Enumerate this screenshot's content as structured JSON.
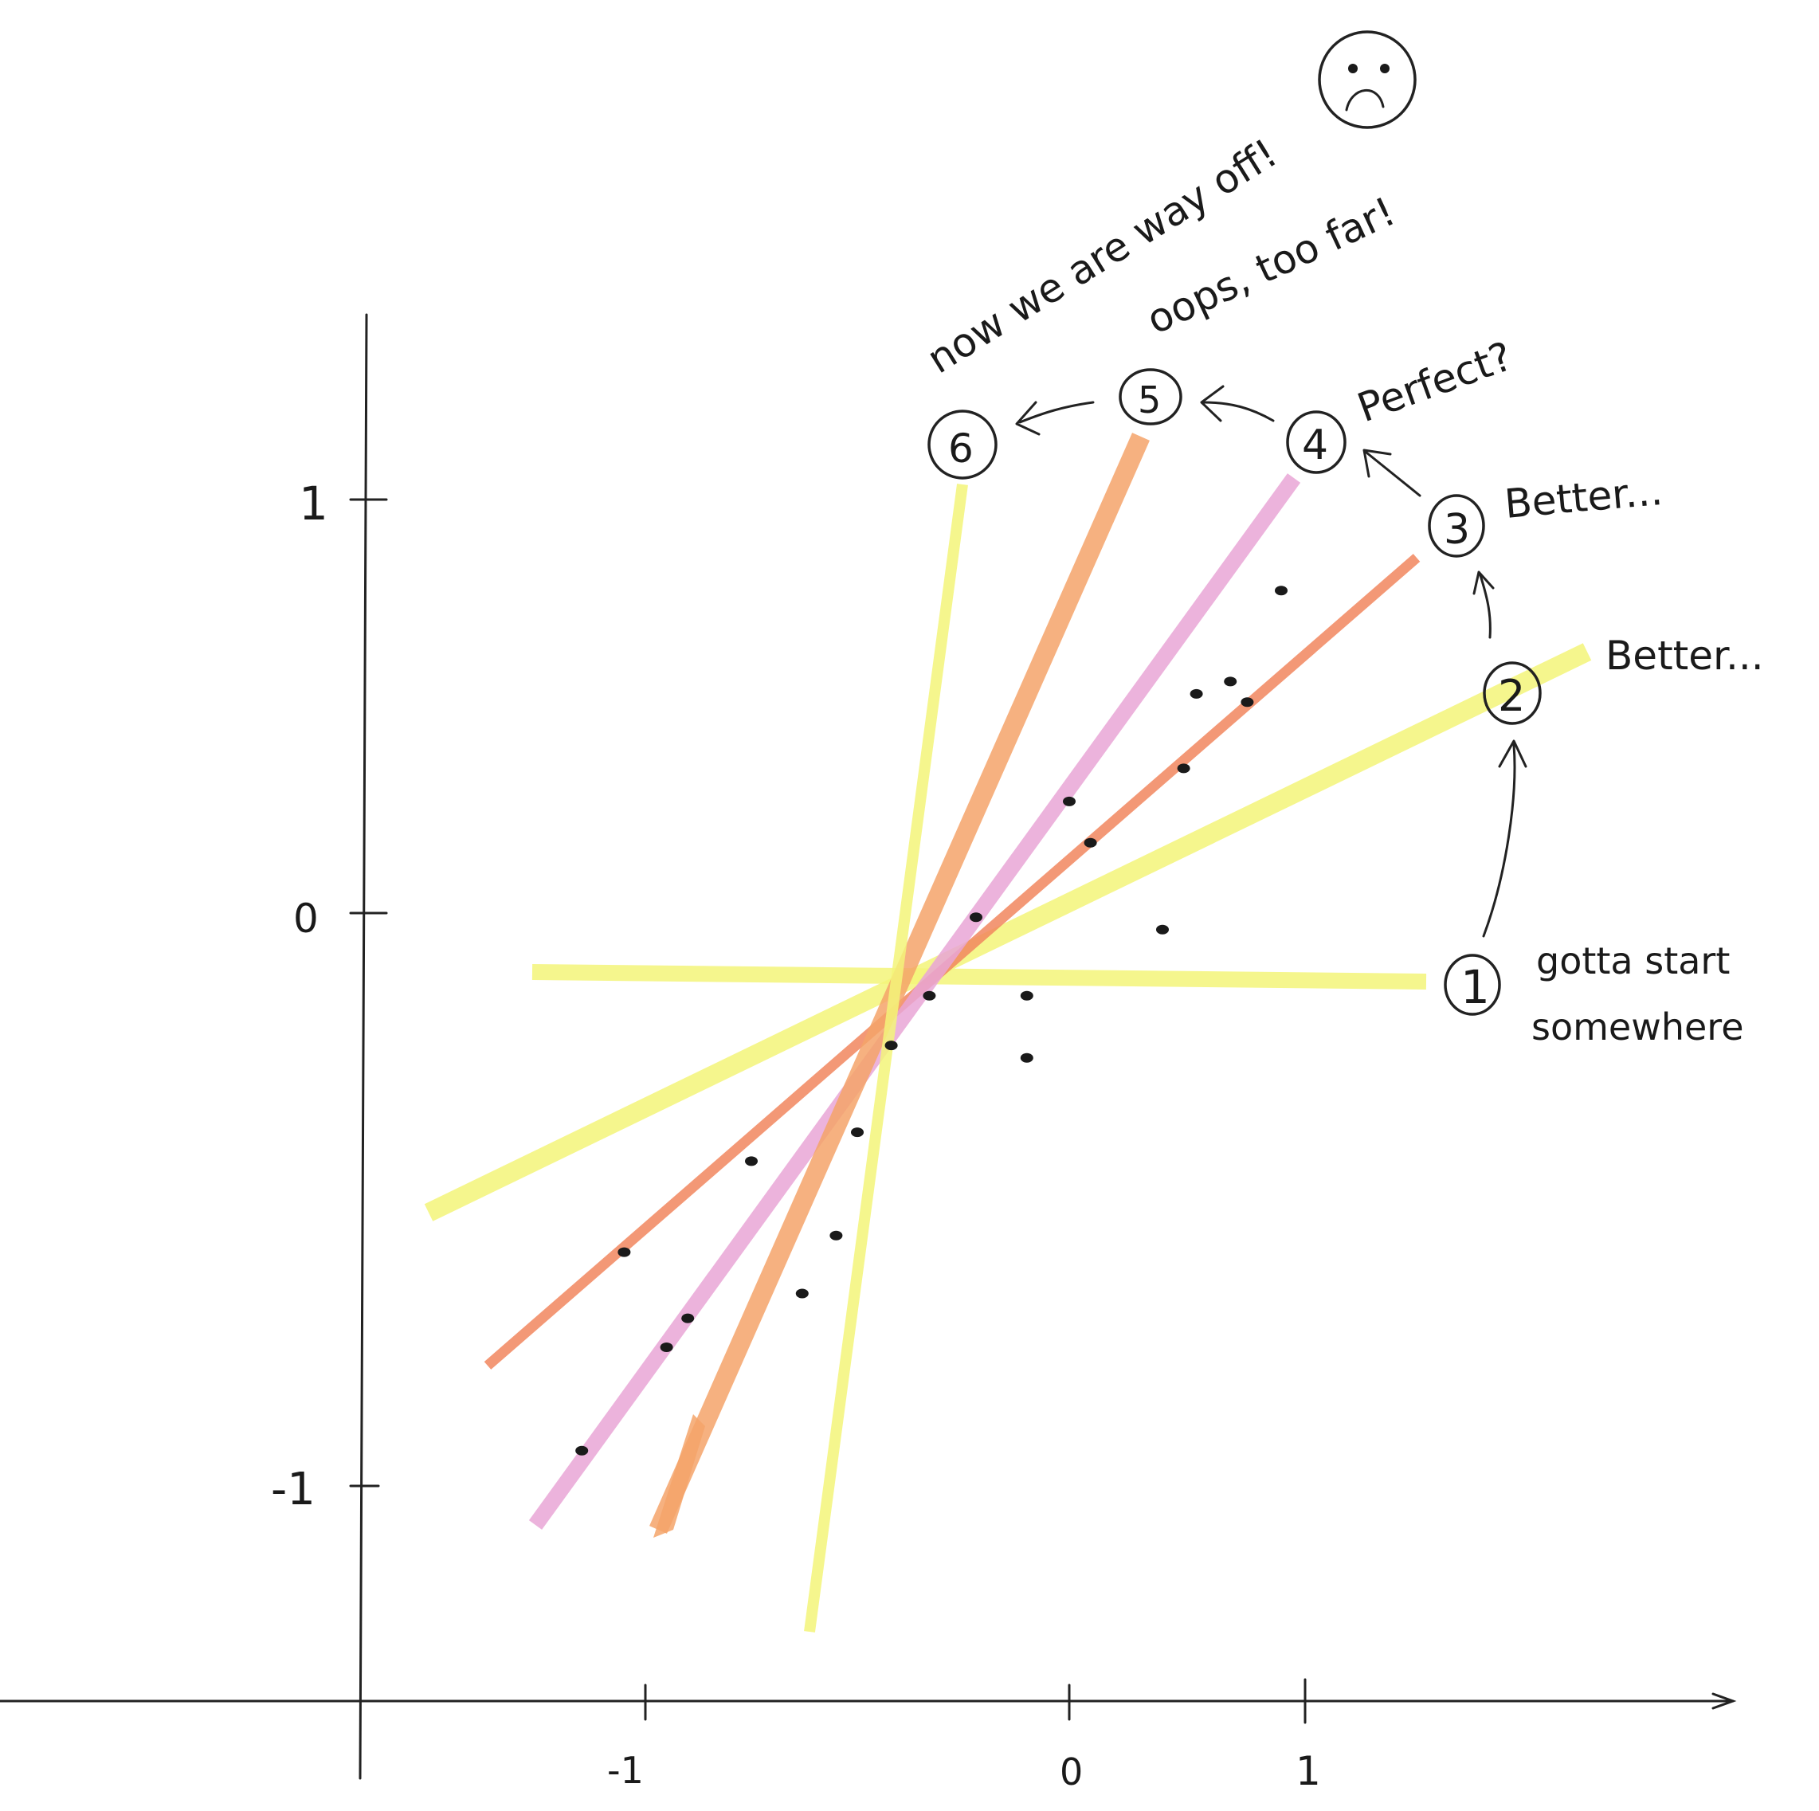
{
  "colors": {
    "yellow": "#f4f57a",
    "orange": "#f5a46a",
    "pink": "#e9a6d6",
    "salmon": "#f2875f",
    "ink": "#1a1a1a"
  },
  "axes": {
    "y_ticks": [
      "1",
      "0",
      "-1"
    ],
    "x_ticks": [
      "-1",
      "0",
      "1"
    ]
  },
  "steps": [
    {
      "num": "1",
      "caption_line1": "gotta start",
      "caption_line2": "somewhere",
      "color": "yellow"
    },
    {
      "num": "2",
      "caption": "Better...",
      "color": "yellow"
    },
    {
      "num": "3",
      "caption": "Better...",
      "color": "salmon"
    },
    {
      "num": "4",
      "caption": "Perfect?",
      "color": "pink"
    },
    {
      "num": "5",
      "caption": "oops, too far!",
      "color": "orange"
    },
    {
      "num": "6",
      "caption": "now we are way off!",
      "color": "yellow"
    }
  ],
  "sad_face_icon": "frowning-face-icon",
  "chart_data": {
    "type": "scatter",
    "x": [
      -1.15,
      -1.05,
      -0.95,
      -0.9,
      -0.75,
      -0.63,
      -0.55,
      -0.5,
      -0.42,
      -0.33,
      -0.22,
      -0.1,
      -0.1,
      0.0,
      0.05,
      0.22,
      0.27,
      0.3,
      0.38,
      0.42,
      0.5
    ],
    "y": [
      -1.3,
      -0.82,
      -1.05,
      -0.98,
      -0.6,
      -0.92,
      -0.78,
      -0.53,
      -0.32,
      -0.2,
      -0.01,
      -0.2,
      -0.35,
      0.27,
      0.17,
      -0.04,
      0.35,
      0.53,
      0.56,
      0.51,
      0.78
    ],
    "xlim": [
      -1.7,
      1.6
    ],
    "ylim": [
      -1.85,
      1.35
    ]
  }
}
